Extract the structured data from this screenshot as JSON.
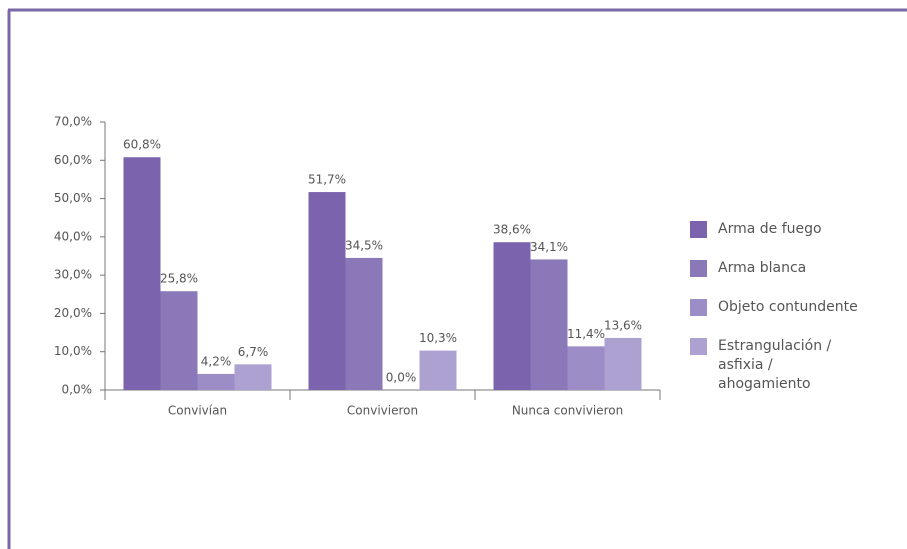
{
  "chart_data": {
    "type": "bar",
    "categories": [
      "Convivían",
      "Convivieron",
      "Nunca convivieron"
    ],
    "series": [
      {
        "name": "Arma de fuego",
        "color": "#7b63ad",
        "values": [
          60.8,
          51.7,
          38.6
        ],
        "value_labels": [
          "60,8%",
          "51,7%",
          "38,6%"
        ]
      },
      {
        "name": "Arma blanca",
        "color": "#8a78b9",
        "values": [
          25.8,
          34.5,
          34.1
        ],
        "value_labels": [
          "25,8%",
          "34,5%",
          "34,1%"
        ]
      },
      {
        "name": "Objeto contundente",
        "color": "#9c8dc7",
        "values": [
          4.2,
          0,
          11.4
        ],
        "value_labels": [
          "4,2%",
          "0,0%",
          "11,4%"
        ]
      },
      {
        "name": "Estrangulación / asfixia / ahogamiento",
        "color": "#ad a1d1",
        "values": [
          6.7,
          10.3,
          13.6
        ],
        "value_labels": [
          "6,7%",
          "10,3%",
          "13,6%"
        ]
      }
    ],
    "ylim": [
      0,
      70
    ],
    "yticks": [
      {
        "value": 0,
        "label": "0,0%"
      },
      {
        "value": 10,
        "label": "10,0%"
      },
      {
        "value": 20,
        "label": "20,0%"
      },
      {
        "value": 30,
        "label": "30,0%"
      },
      {
        "value": 40,
        "label": "40,0%"
      },
      {
        "value": 50,
        "label": "50,0%"
      },
      {
        "value": 60,
        "label": "60,0%"
      },
      {
        "value": 70,
        "label": "70,0%"
      }
    ],
    "legend": "right"
  }
}
